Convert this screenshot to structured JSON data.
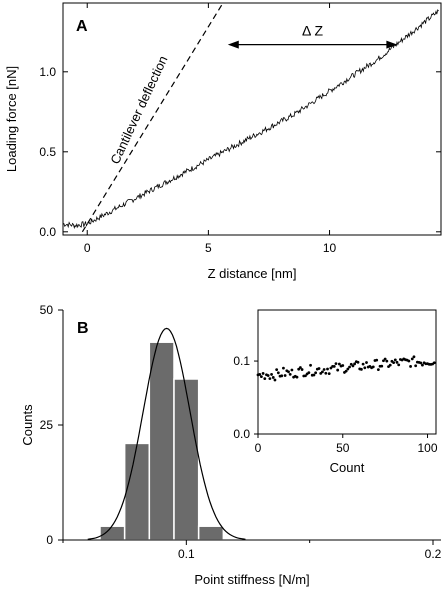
{
  "chart_data": [
    {
      "panel": "A",
      "type": "line",
      "xlabel": "Z distance [nm]",
      "ylabel": "Loading force [nN]",
      "xlim": [
        -1,
        14.6
      ],
      "ylim": [
        -0.02,
        1.43
      ],
      "xticks": [
        0,
        5,
        10
      ],
      "yticks": [
        0.0,
        0.5,
        1.0
      ],
      "xtick_labels": [
        "0",
        "5",
        "10"
      ],
      "ytick_labels": [
        "0.0",
        "0.5",
        "1.0"
      ],
      "grid": false,
      "series": [
        {
          "style": "solid",
          "x": [
            -1.0,
            -0.5,
            0.0,
            0.5,
            1.0,
            1.5,
            2.0,
            2.5,
            3.0,
            3.5,
            4.0,
            4.5,
            5.0,
            5.5,
            6.0,
            6.5,
            7.0,
            7.5,
            8.0,
            8.5,
            9.0,
            9.5,
            10.0,
            10.5,
            11.0,
            11.5,
            12.0,
            12.5,
            13.0,
            13.5,
            14.0,
            14.5
          ],
          "y": [
            0.05,
            0.04,
            0.05,
            0.09,
            0.13,
            0.17,
            0.21,
            0.25,
            0.29,
            0.33,
            0.37,
            0.41,
            0.45,
            0.49,
            0.53,
            0.57,
            0.61,
            0.65,
            0.69,
            0.73,
            0.78,
            0.83,
            0.88,
            0.93,
            0.98,
            1.03,
            1.08,
            1.14,
            1.2,
            1.26,
            1.32,
            1.38
          ]
        },
        {
          "style": "dashed",
          "x": [
            -0.2,
            5.6
          ],
          "y": [
            0.0,
            1.43
          ]
        }
      ],
      "annotations": [
        {
          "text": "Cantilever deflection",
          "x": 2.3,
          "y": 0.75,
          "rotation": -65
        },
        {
          "text": "Δ Z",
          "arrow": "double",
          "x1": 5.8,
          "x2": 12.8,
          "y": 1.17
        }
      ]
    },
    {
      "panel": "B",
      "type": "bar",
      "xlabel": "Point stiffness [N/m]",
      "ylabel": "Counts",
      "xlim": [
        0.05,
        0.2
      ],
      "ylim": [
        0,
        50
      ],
      "xticks": [
        0.1,
        0.2
      ],
      "xtick_labels": [
        "0.1",
        "0.2"
      ],
      "yticks": [
        0,
        25,
        50
      ],
      "ytick_labels": [
        "0",
        "25",
        "50"
      ],
      "bin_width": 0.01,
      "bin_centers": [
        0.07,
        0.08,
        0.09,
        0.1,
        0.11
      ],
      "values": [
        3,
        21,
        43,
        35,
        3
      ],
      "fit_curve": {
        "type": "gaussian",
        "mean": 0.092,
        "sd": 0.0095,
        "peak": 46
      },
      "inset": {
        "type": "scatter",
        "xlabel": "Count",
        "ylabel": "",
        "xlim": [
          0,
          105
        ],
        "ylim": [
          0.0,
          0.17
        ],
        "xticks": [
          0,
          50,
          100
        ],
        "xtick_labels": [
          "0",
          "50",
          "100"
        ],
        "yticks": [
          0.0,
          0.1
        ],
        "ytick_labels": [
          "0.0",
          "0.1"
        ],
        "x": [
          0,
          5,
          10,
          15,
          20,
          25,
          30,
          35,
          40,
          45,
          50,
          55,
          60,
          65,
          70,
          75,
          80,
          85,
          90,
          95,
          100,
          105
        ],
        "y": [
          0.08,
          0.082,
          0.081,
          0.084,
          0.083,
          0.086,
          0.087,
          0.088,
          0.089,
          0.09,
          0.091,
          0.092,
          0.093,
          0.094,
          0.095,
          0.096,
          0.097,
          0.098,
          0.099,
          0.099,
          0.1,
          0.101
        ]
      }
    }
  ],
  "colors": {
    "bar_fill": "#6b6b6b",
    "bar_edge": "#ffffff",
    "line": "#000000",
    "axis": "#000000",
    "background": "#ffffff"
  }
}
